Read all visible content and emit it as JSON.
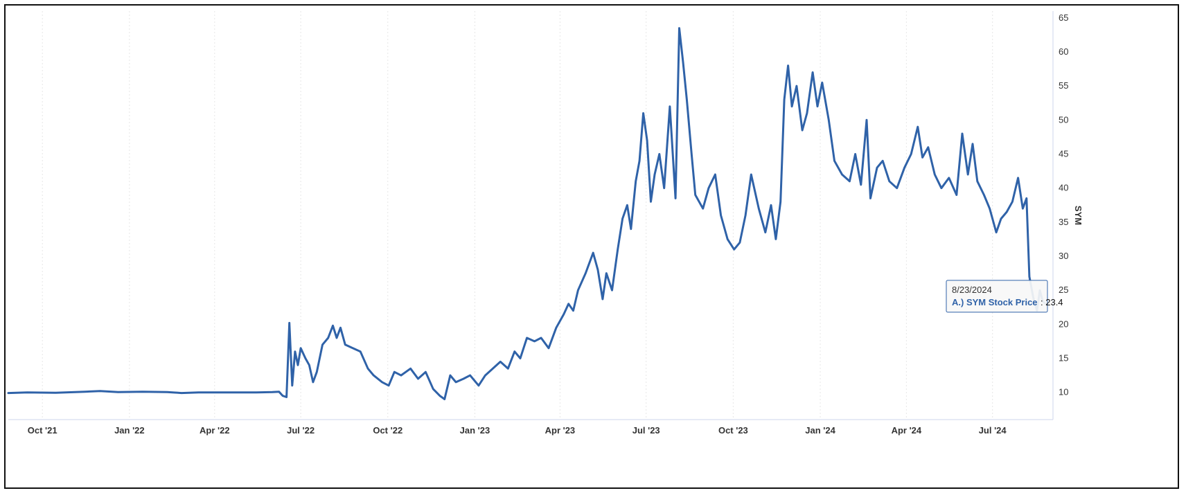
{
  "chart_data": {
    "type": "line",
    "title": "",
    "xlabel": "",
    "ylabel": "SYM",
    "y_axis_position": "right",
    "ylim": [
      6,
      66
    ],
    "xlim": [
      "2021-08-26",
      "2024-08-31"
    ],
    "yticks": [
      10,
      15,
      20,
      25,
      30,
      35,
      40,
      45,
      50,
      55,
      60,
      65
    ],
    "xticks": [
      {
        "date": "2021-10-01",
        "label": "Oct '21"
      },
      {
        "date": "2022-01-01",
        "label": "Jan '22"
      },
      {
        "date": "2022-04-01",
        "label": "Apr '22"
      },
      {
        "date": "2022-07-01",
        "label": "Jul '22"
      },
      {
        "date": "2022-10-01",
        "label": "Oct '22"
      },
      {
        "date": "2023-01-01",
        "label": "Jan '23"
      },
      {
        "date": "2023-04-01",
        "label": "Apr '23"
      },
      {
        "date": "2023-07-01",
        "label": "Jul '23"
      },
      {
        "date": "2023-10-01",
        "label": "Oct '23"
      },
      {
        "date": "2024-01-01",
        "label": "Jan '24"
      },
      {
        "date": "2024-04-01",
        "label": "Apr '24"
      },
      {
        "date": "2024-07-01",
        "label": "Jul '24"
      }
    ],
    "grid": {
      "vertical": true,
      "horizontal": false
    },
    "legend": "none",
    "series": [
      {
        "name": "A.) SYM Stock Price",
        "color": "#2f62a8",
        "points": [
          [
            "2021-08-26",
            9.9
          ],
          [
            "2021-09-15",
            10.0
          ],
          [
            "2021-10-15",
            9.95
          ],
          [
            "2021-11-15",
            10.1
          ],
          [
            "2021-12-01",
            10.2
          ],
          [
            "2021-12-20",
            10.05
          ],
          [
            "2022-01-15",
            10.1
          ],
          [
            "2022-02-10",
            10.05
          ],
          [
            "2022-02-25",
            9.9
          ],
          [
            "2022-03-15",
            10.0
          ],
          [
            "2022-04-15",
            10.0
          ],
          [
            "2022-05-15",
            10.0
          ],
          [
            "2022-06-01",
            10.05
          ],
          [
            "2022-06-08",
            10.1
          ],
          [
            "2022-06-12",
            9.5
          ],
          [
            "2022-06-16",
            9.3
          ],
          [
            "2022-06-19",
            20.2
          ],
          [
            "2022-06-22",
            11.0
          ],
          [
            "2022-06-25",
            16.0
          ],
          [
            "2022-06-28",
            14.0
          ],
          [
            "2022-07-01",
            16.5
          ],
          [
            "2022-07-06",
            15.0
          ],
          [
            "2022-07-10",
            14.0
          ],
          [
            "2022-07-14",
            11.5
          ],
          [
            "2022-07-18",
            13.0
          ],
          [
            "2022-07-24",
            17.0
          ],
          [
            "2022-07-30",
            18.0
          ],
          [
            "2022-08-04",
            19.8
          ],
          [
            "2022-08-08",
            18.0
          ],
          [
            "2022-08-12",
            19.5
          ],
          [
            "2022-08-17",
            17.0
          ],
          [
            "2022-08-25",
            16.5
          ],
          [
            "2022-09-02",
            16.0
          ],
          [
            "2022-09-10",
            13.5
          ],
          [
            "2022-09-16",
            12.5
          ],
          [
            "2022-09-25",
            11.5
          ],
          [
            "2022-10-02",
            11.0
          ],
          [
            "2022-10-08",
            13.0
          ],
          [
            "2022-10-15",
            12.5
          ],
          [
            "2022-10-25",
            13.5
          ],
          [
            "2022-11-02",
            12.0
          ],
          [
            "2022-11-10",
            13.0
          ],
          [
            "2022-11-18",
            10.5
          ],
          [
            "2022-11-25",
            9.5
          ],
          [
            "2022-11-30",
            9.0
          ],
          [
            "2022-12-06",
            12.5
          ],
          [
            "2022-12-12",
            11.5
          ],
          [
            "2022-12-20",
            12.0
          ],
          [
            "2022-12-27",
            12.5
          ],
          [
            "2023-01-05",
            11.0
          ],
          [
            "2023-01-12",
            12.5
          ],
          [
            "2023-01-20",
            13.5
          ],
          [
            "2023-01-28",
            14.5
          ],
          [
            "2023-02-05",
            13.5
          ],
          [
            "2023-02-12",
            16.0
          ],
          [
            "2023-02-18",
            15.0
          ],
          [
            "2023-02-25",
            18.0
          ],
          [
            "2023-03-05",
            17.5
          ],
          [
            "2023-03-12",
            18.0
          ],
          [
            "2023-03-20",
            16.5
          ],
          [
            "2023-03-28",
            19.5
          ],
          [
            "2023-04-05",
            21.5
          ],
          [
            "2023-04-10",
            23.0
          ],
          [
            "2023-04-15",
            22.0
          ],
          [
            "2023-04-20",
            25.0
          ],
          [
            "2023-04-28",
            27.5
          ],
          [
            "2023-05-06",
            30.5
          ],
          [
            "2023-05-11",
            28.0
          ],
          [
            "2023-05-16",
            23.7
          ],
          [
            "2023-05-20",
            27.5
          ],
          [
            "2023-05-26",
            25.0
          ],
          [
            "2023-06-01",
            31.0
          ],
          [
            "2023-06-06",
            35.5
          ],
          [
            "2023-06-11",
            37.5
          ],
          [
            "2023-06-15",
            34.0
          ],
          [
            "2023-06-20",
            41.0
          ],
          [
            "2023-06-24",
            44.0
          ],
          [
            "2023-06-28",
            51.0
          ],
          [
            "2023-07-02",
            47.0
          ],
          [
            "2023-07-06",
            38.0
          ],
          [
            "2023-07-10",
            42.0
          ],
          [
            "2023-07-15",
            45.0
          ],
          [
            "2023-07-20",
            40.0
          ],
          [
            "2023-07-26",
            52.0
          ],
          [
            "2023-08-01",
            38.5
          ],
          [
            "2023-08-05",
            63.5
          ],
          [
            "2023-08-09",
            58.5
          ],
          [
            "2023-08-13",
            53.0
          ],
          [
            "2023-08-18",
            45.0
          ],
          [
            "2023-08-22",
            39.0
          ],
          [
            "2023-08-30",
            37.0
          ],
          [
            "2023-09-05",
            40.0
          ],
          [
            "2023-09-12",
            42.0
          ],
          [
            "2023-09-18",
            36.0
          ],
          [
            "2023-09-25",
            32.5
          ],
          [
            "2023-10-02",
            31.0
          ],
          [
            "2023-10-08",
            32.0
          ],
          [
            "2023-10-14",
            36.0
          ],
          [
            "2023-10-20",
            42.0
          ],
          [
            "2023-10-28",
            37.0
          ],
          [
            "2023-11-04",
            33.5
          ],
          [
            "2023-11-10",
            37.5
          ],
          [
            "2023-11-15",
            32.5
          ],
          [
            "2023-11-20",
            38.0
          ],
          [
            "2023-11-24",
            53.0
          ],
          [
            "2023-11-28",
            58.0
          ],
          [
            "2023-12-02",
            52.0
          ],
          [
            "2023-12-07",
            55.0
          ],
          [
            "2023-12-13",
            48.5
          ],
          [
            "2023-12-18",
            51.0
          ],
          [
            "2023-12-24",
            57.0
          ],
          [
            "2023-12-29",
            52.0
          ],
          [
            "2024-01-03",
            55.5
          ],
          [
            "2024-01-10",
            50.0
          ],
          [
            "2024-01-16",
            44.0
          ],
          [
            "2024-01-24",
            42.0
          ],
          [
            "2024-02-01",
            41.0
          ],
          [
            "2024-02-07",
            45.0
          ],
          [
            "2024-02-13",
            40.5
          ],
          [
            "2024-02-19",
            50.0
          ],
          [
            "2024-02-23",
            38.5
          ],
          [
            "2024-03-01",
            43.0
          ],
          [
            "2024-03-07",
            44.0
          ],
          [
            "2024-03-14",
            41.0
          ],
          [
            "2024-03-22",
            40.0
          ],
          [
            "2024-03-30",
            43.0
          ],
          [
            "2024-04-06",
            45.0
          ],
          [
            "2024-04-13",
            49.0
          ],
          [
            "2024-04-18",
            44.5
          ],
          [
            "2024-04-24",
            46.0
          ],
          [
            "2024-05-01",
            42.0
          ],
          [
            "2024-05-08",
            40.0
          ],
          [
            "2024-05-16",
            41.5
          ],
          [
            "2024-05-24",
            39.0
          ],
          [
            "2024-05-30",
            48.0
          ],
          [
            "2024-06-05",
            42.0
          ],
          [
            "2024-06-10",
            46.5
          ],
          [
            "2024-06-15",
            41.0
          ],
          [
            "2024-06-22",
            39.0
          ],
          [
            "2024-06-28",
            37.0
          ],
          [
            "2024-07-05",
            33.5
          ],
          [
            "2024-07-10",
            35.5
          ],
          [
            "2024-07-16",
            36.5
          ],
          [
            "2024-07-22",
            38.0
          ],
          [
            "2024-07-28",
            41.5
          ],
          [
            "2024-08-02",
            37.0
          ],
          [
            "2024-08-06",
            38.5
          ],
          [
            "2024-08-09",
            27.0
          ],
          [
            "2024-08-13",
            24.0
          ],
          [
            "2024-08-17",
            22.0
          ],
          [
            "2024-08-20",
            25.0
          ],
          [
            "2024-08-23",
            23.4
          ],
          [
            "2024-08-26",
            23.0
          ]
        ]
      }
    ],
    "tooltip": {
      "date": "8/23/2024",
      "series_label": "A.) SYM Stock Price",
      "value": "23.4",
      "at_date": "2024-08-23",
      "at_value": 23.4
    }
  }
}
